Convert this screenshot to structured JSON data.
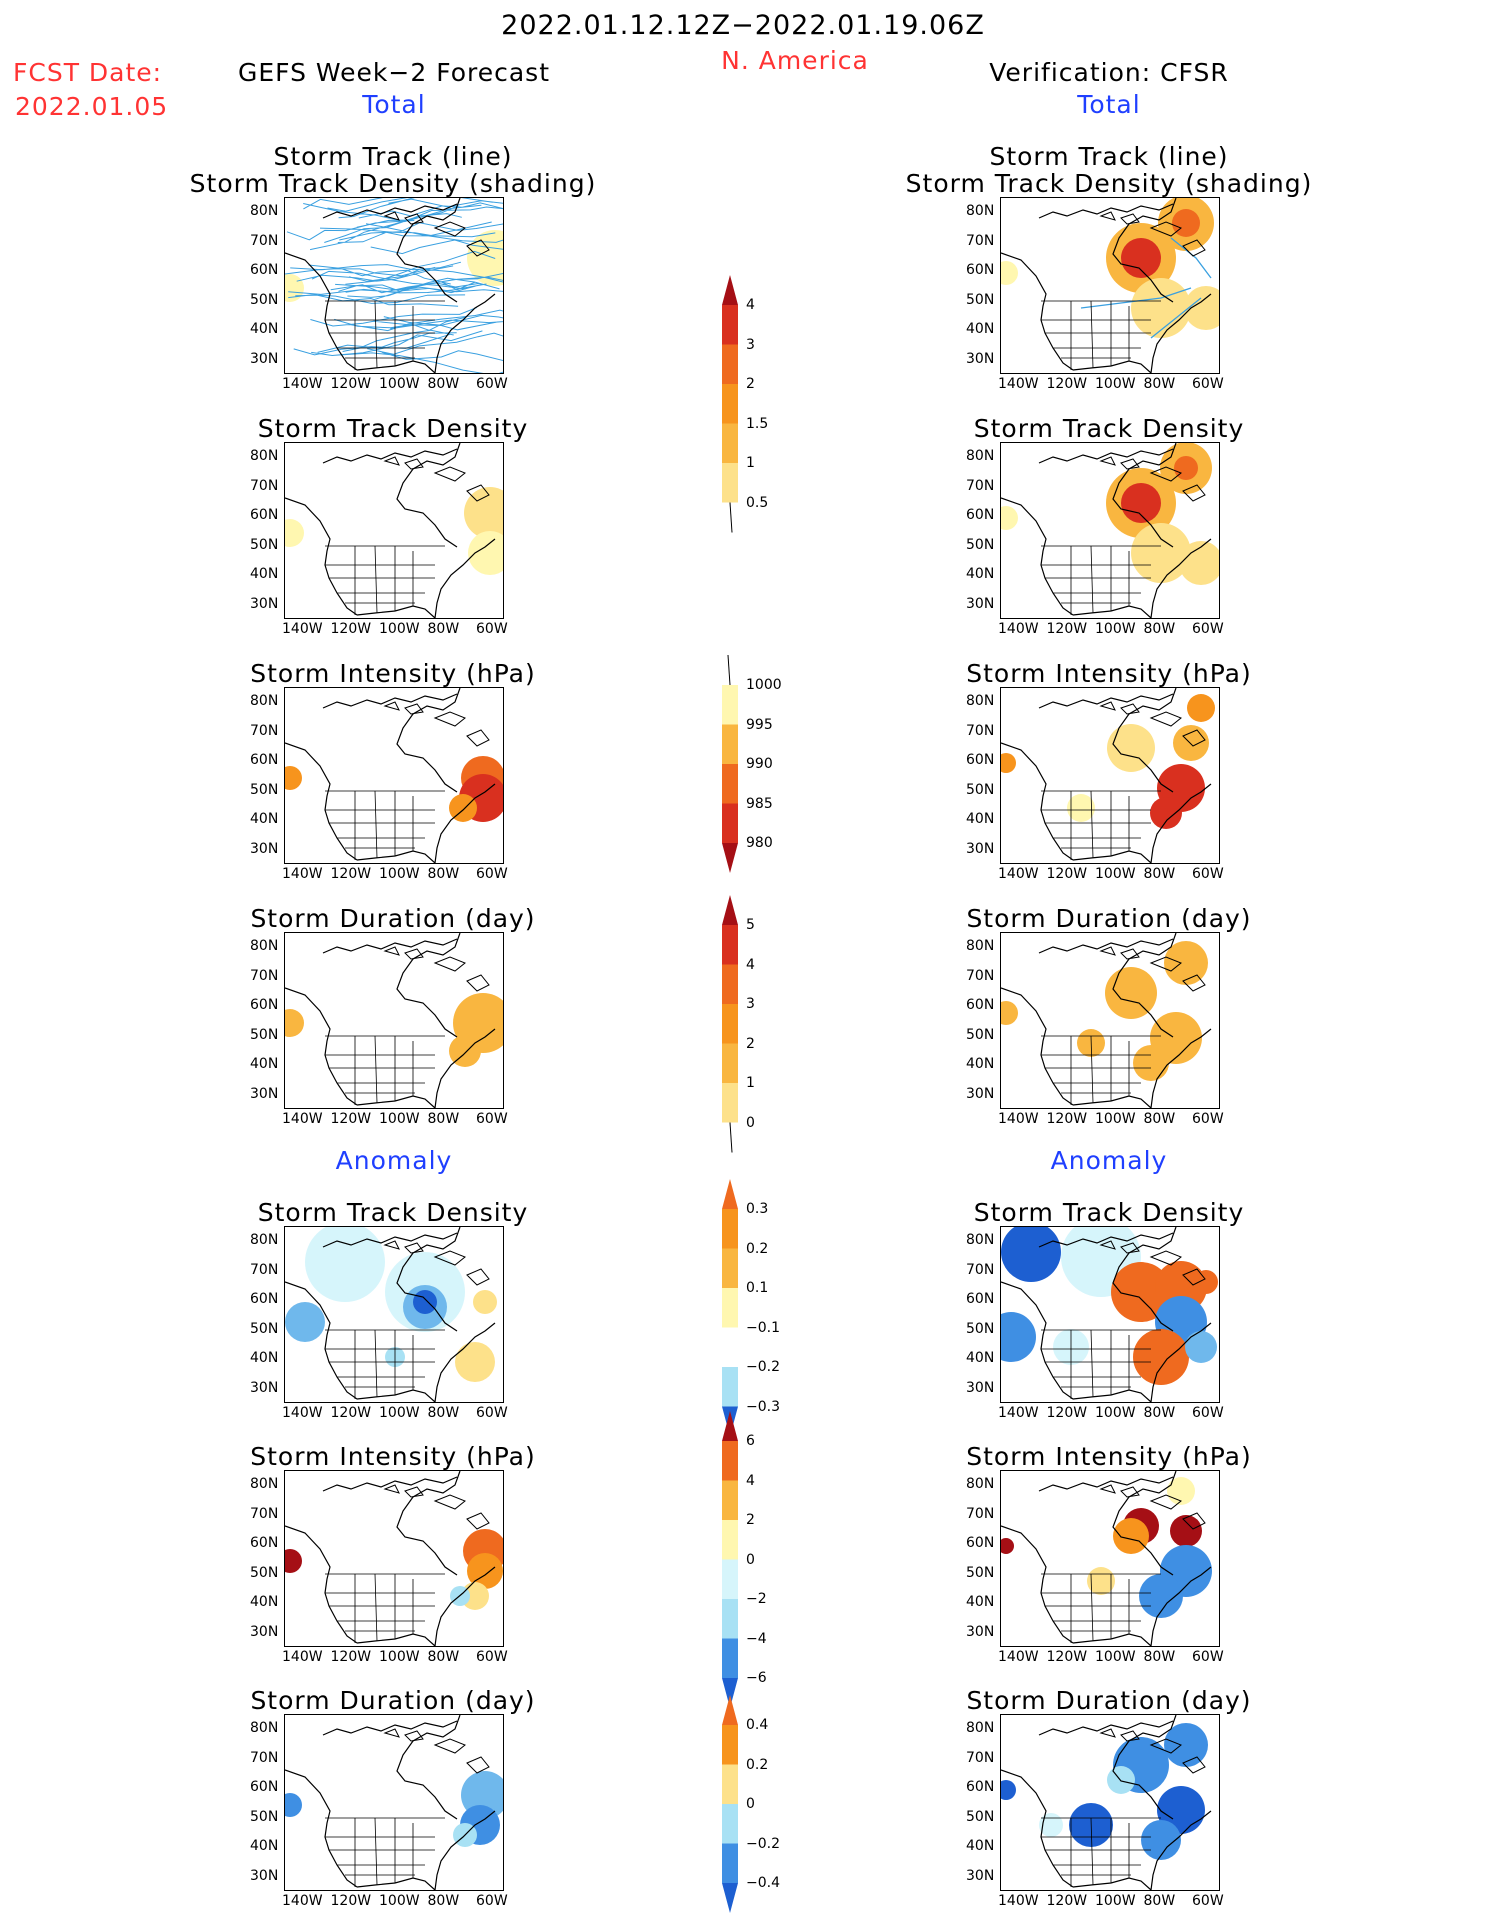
{
  "header": {
    "period": "2022.01.12.12Z−2022.01.19.06Z",
    "region": "N. America",
    "fcst_label": "FCST Date:",
    "fcst_date": "2022.01.05",
    "left_title": "GEFS Week−2 Forecast",
    "right_title": "Verification: CFSR",
    "total": "Total",
    "anomaly": "Anomaly"
  },
  "panel_titles": {
    "track_line": "Storm Track (line)",
    "track_shading": "Storm Track Density (shading)",
    "density": "Storm Track Density",
    "intensity": "Storm Intensity (hPa)",
    "duration": "Storm Duration (day)"
  },
  "axes": {
    "lat_ticks": [
      "80N",
      "70N",
      "60N",
      "50N",
      "40N",
      "30N"
    ],
    "lon_ticks": [
      "140W",
      "120W",
      "100W",
      "80W",
      "60W"
    ]
  },
  "colorbars": {
    "density_total": [
      "4",
      "3",
      "2",
      "1.5",
      "1",
      "0.5"
    ],
    "intensity_total": [
      "1000",
      "995",
      "990",
      "985",
      "980"
    ],
    "duration_total": [
      "5",
      "4",
      "3",
      "2",
      "1",
      "0"
    ],
    "density_anom": [
      "0.3",
      "0.2",
      "0.1",
      "−0.1",
      "−0.2",
      "−0.3"
    ],
    "intensity_anom": [
      "6",
      "4",
      "2",
      "0",
      "−2",
      "−4",
      "−6"
    ],
    "duration_anom": [
      "0.4",
      "0.2",
      "0",
      "−0.2",
      "−0.4"
    ]
  },
  "colors": {
    "warm": [
      "#fff7b0",
      "#fde18a",
      "#f9b640",
      "#f7941d",
      "#ef6a1f",
      "#d9301f",
      "#a50f15"
    ],
    "cool": [
      "#d6f5fb",
      "#a8e1f4",
      "#6fb8ec",
      "#3f8fe3",
      "#1d5fd1"
    ],
    "track_line": "#3aa0e0",
    "title_red": "#ff3333",
    "title_blue": "#1f3fff"
  },
  "chart_data": {
    "type": "heatmap",
    "layout": "7 rows x 2 columns of North America map panels (left: GEFS forecast, right: CFSR verification)",
    "lat_range": [
      25,
      85
    ],
    "lon_range": [
      -145,
      -55
    ],
    "rows": [
      "track_line+density",
      "density",
      "intensity",
      "duration",
      "density_anomaly",
      "intensity_anomaly",
      "duration_anomaly"
    ]
  }
}
